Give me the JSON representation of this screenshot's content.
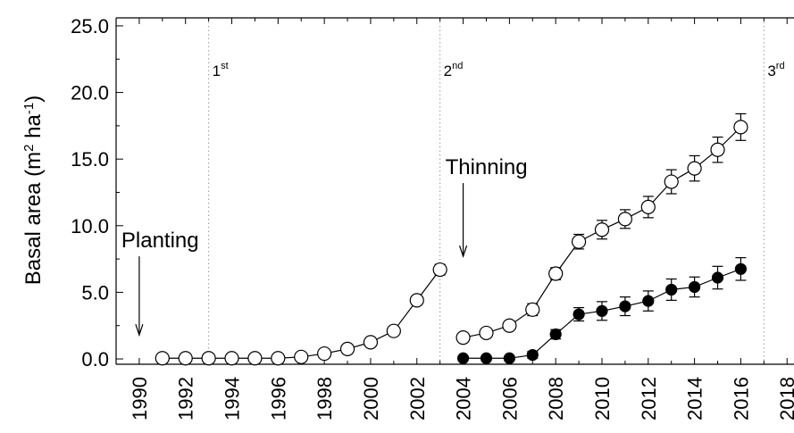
{
  "chart_data": {
    "type": "line",
    "ylabel": {
      "main": "Basal area (m",
      "sup1": "2",
      "mid": " ha",
      "sup2": "-1",
      "end": ")"
    },
    "xlabel": "",
    "xlim": [
      1989,
      2018.3
    ],
    "ylim": [
      -0.4,
      25.6
    ],
    "x_ticks": [
      "1990",
      "1992",
      "1994",
      "1996",
      "1998",
      "2000",
      "2002",
      "2004",
      "2006",
      "2008",
      "2010",
      "2012",
      "2014",
      "2016",
      "2018"
    ],
    "y_ticks": [
      "0.0",
      "5.0",
      "10.0",
      "15.0",
      "20.0",
      "25.0"
    ],
    "grid": false,
    "thinning_events": [
      {
        "x": 1993,
        "label": "1",
        "sup": "st"
      },
      {
        "x": 2003,
        "label": "2",
        "sup": "nd"
      },
      {
        "x": 2017,
        "label": "3",
        "sup": "rd"
      }
    ],
    "annotations": [
      {
        "text": "Planting",
        "x": 1990,
        "y_arrow_start": 7.7,
        "y_arrow_end": 1.8
      },
      {
        "text": "Thinning",
        "x": 2004,
        "y_arrow_start": 13.2,
        "y_arrow_end": 7.7
      }
    ],
    "series": [
      {
        "marker": "open-circle",
        "segments": [
          {
            "x": [
              1991,
              1992,
              1993,
              1994,
              1995,
              1996,
              1997,
              1998,
              1999,
              2000,
              2001,
              2002,
              2003
            ],
            "y": [
              0.05,
              0.05,
              0.05,
              0.05,
              0.05,
              0.05,
              0.15,
              0.4,
              0.75,
              1.25,
              2.1,
              4.4,
              6.7
            ],
            "err": [
              0,
              0,
              0,
              0,
              0,
              0,
              0,
              0,
              0,
              0,
              0,
              0,
              0.4
            ]
          },
          {
            "x": [
              2004,
              2005,
              2006,
              2007,
              2008,
              2009,
              2010,
              2011,
              2012,
              2013,
              2014,
              2015,
              2016
            ],
            "y": [
              1.6,
              1.95,
              2.5,
              3.7,
              6.4,
              8.8,
              9.7,
              10.5,
              11.4,
              13.3,
              14.3,
              15.7,
              17.4
            ],
            "err": [
              0,
              0.2,
              0.25,
              0.45,
              0.45,
              0.55,
              0.7,
              0.7,
              0.8,
              0.9,
              0.95,
              0.95,
              1.0
            ]
          }
        ]
      },
      {
        "marker": "filled-circle",
        "segments": [
          {
            "x": [
              2004,
              2005,
              2006,
              2007,
              2008,
              2009,
              2010,
              2011,
              2012,
              2013,
              2014,
              2015,
              2016
            ],
            "y": [
              0.05,
              0.05,
              0.05,
              0.3,
              1.85,
              3.35,
              3.6,
              3.95,
              4.35,
              5.2,
              5.4,
              6.1,
              6.75
            ],
            "err": [
              0,
              0,
              0,
              0.25,
              0.35,
              0.5,
              0.7,
              0.7,
              0.75,
              0.8,
              0.75,
              0.85,
              0.85
            ]
          }
        ]
      }
    ]
  }
}
